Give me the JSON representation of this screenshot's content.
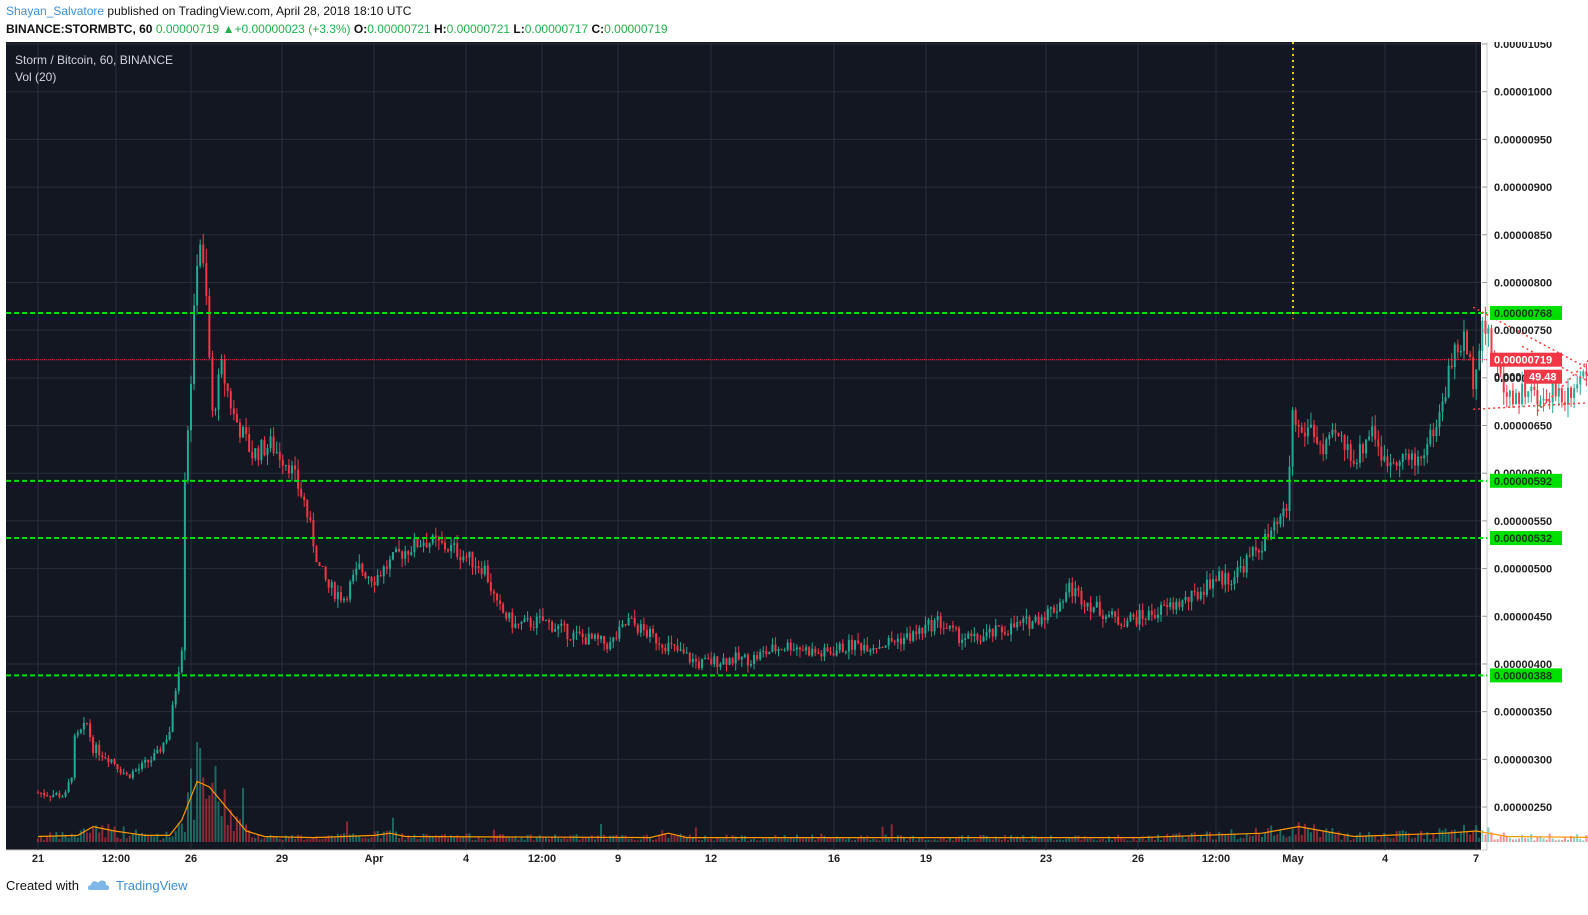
{
  "header": {
    "author": "Shayan_Salvatore",
    "published": "published on TradingView.com, April 28, 2018 18:10 UTC",
    "symbol": "BINANCE:STORMBTC, 60",
    "last": "0.00000719",
    "change": "+0.00000023 (+3.3%)",
    "o_label": "O:",
    "o_value": "0.00000721",
    "h_label": "H:",
    "h_value": "0.00000721",
    "l_label": "L:",
    "l_value": "0.00000717",
    "c_label": "C:",
    "c_value": "0.00000719"
  },
  "legend": {
    "title": "Storm / Bitcoin, 60, BINANCE",
    "indicator": "Vol (20)"
  },
  "footer": {
    "created": "Created with",
    "brand": "TradingView"
  },
  "colors": {
    "background": "#131722",
    "grid": "#2a2e39",
    "up": "#22ab94",
    "down": "#f23645",
    "support": "#00e000",
    "price_line": "#f23645",
    "target": "#e6d200",
    "volume_ma": "#ff9800",
    "axis_bg": "#ffffff"
  },
  "chart_data": {
    "type": "candlestick",
    "ylim": [
      2.1e-06,
      1.06e-05
    ],
    "y_ticks": [
      "0.00001050",
      "0.00001000",
      "0.00000950",
      "0.00000900",
      "0.00000850",
      "0.00000800",
      "0.00000750",
      "0.00000700",
      "0.00000650",
      "0.00000600",
      "0.00000550",
      "0.00000500",
      "0.00000450",
      "0.00000400",
      "0.00000350",
      "0.00000300",
      "0.00000250"
    ],
    "x_ticks": [
      "21",
      "12:00",
      "26",
      "29",
      "Apr",
      "4",
      "12:00",
      "9",
      "12",
      "16",
      "19",
      "23",
      "26",
      "12:00",
      "May",
      "4",
      "7"
    ],
    "support_levels": [
      {
        "value": 7.68e-06,
        "label": "0.00000768"
      },
      {
        "value": 5.92e-06,
        "label": "0.00000592"
      },
      {
        "value": 5.32e-06,
        "label": "0.00000532"
      },
      {
        "value": 3.88e-06,
        "label": "0.00000388"
      }
    ],
    "current_price": {
      "value": 7.19e-06,
      "label": "0.00000719"
    },
    "countdown": {
      "label": "49.48",
      "prefix": "0.000"
    },
    "price_path": [
      [
        0,
        2.65e-06
      ],
      [
        0.9,
        2.62e-06
      ],
      [
        1.1,
        2.85e-06
      ],
      [
        1.2,
        3.2e-06
      ],
      [
        1.6,
        3.37e-06
      ],
      [
        1.8,
        3.12e-06
      ],
      [
        2.4,
        3e-06
      ],
      [
        2.9,
        2.83e-06
      ],
      [
        3.3,
        2.9e-06
      ],
      [
        3.9,
        3.05e-06
      ],
      [
        4.3,
        3.3e-06
      ],
      [
        4.7,
        4.2e-06
      ],
      [
        4.8,
        6e-06
      ],
      [
        5.0,
        7e-06
      ],
      [
        5.25,
        8.6e-06
      ],
      [
        5.5,
        7.8e-06
      ],
      [
        5.7,
        6.6e-06
      ],
      [
        6.0,
        7.1e-06
      ],
      [
        6.4,
        6.6e-06
      ],
      [
        7.0,
        6.2e-06
      ],
      [
        7.6,
        6.3e-06
      ],
      [
        8.2,
        6.1e-06
      ],
      [
        8.7,
        5.7e-06
      ],
      [
        9.2,
        5e-06
      ],
      [
        9.5,
        4.8e-06
      ],
      [
        10.0,
        4.7e-06
      ],
      [
        10.5,
        5e-06
      ],
      [
        11.0,
        4.9e-06
      ],
      [
        11.8,
        5.15e-06
      ],
      [
        12.6,
        5.3e-06
      ],
      [
        13.6,
        5.2e-06
      ],
      [
        14.6,
        5e-06
      ],
      [
        15.0,
        4.6e-06
      ],
      [
        15.6,
        4.4e-06
      ],
      [
        16.5,
        4.45e-06
      ],
      [
        17.5,
        4.3e-06
      ],
      [
        18.7,
        4.2e-06
      ],
      [
        19.3,
        4.45e-06
      ],
      [
        20.0,
        4.3e-06
      ],
      [
        20.8,
        4.15e-06
      ],
      [
        21.6,
        4e-06
      ],
      [
        22.5,
        4.05e-06
      ],
      [
        23.3,
        4.05e-06
      ],
      [
        24.0,
        4.15e-06
      ],
      [
        24.6,
        4.2e-06
      ],
      [
        25.6,
        4.1e-06
      ],
      [
        26.6,
        4.2e-06
      ],
      [
        27.5,
        4.2e-06
      ],
      [
        28.6,
        4.3e-06
      ],
      [
        29.4,
        4.45e-06
      ],
      [
        30.0,
        4.3e-06
      ],
      [
        30.6,
        4.25e-06
      ],
      [
        31.5,
        4.35e-06
      ],
      [
        32.5,
        4.45e-06
      ],
      [
        33.3,
        4.6e-06
      ],
      [
        33.7,
        4.8e-06
      ],
      [
        34.5,
        4.6e-06
      ],
      [
        35.3,
        4.45e-06
      ],
      [
        36.2,
        4.5e-06
      ],
      [
        37.0,
        4.6e-06
      ],
      [
        37.8,
        4.7e-06
      ],
      [
        38.4,
        4.9e-06
      ],
      [
        39.0,
        4.9e-06
      ],
      [
        39.7,
        5.15e-06
      ],
      [
        40.4,
        5.4e-06
      ],
      [
        40.8,
        5.6e-06
      ],
      [
        41.0,
        6.6e-06
      ],
      [
        41.3,
        6.4e-06
      ],
      [
        41.6,
        6.5e-06
      ],
      [
        42.0,
        6.2e-06
      ],
      [
        42.4,
        6.4e-06
      ],
      [
        43.1,
        6.15e-06
      ],
      [
        43.6,
        6.5e-06
      ],
      [
        44.0,
        6.1e-06
      ],
      [
        44.5,
        6.2e-06
      ],
      [
        45.0,
        6.1e-06
      ],
      [
        45.4,
        6.3e-06
      ],
      [
        45.8,
        6.6e-06
      ],
      [
        46.2,
        7.2e-06
      ],
      [
        46.6,
        7.4e-06
      ],
      [
        46.9,
        7e-06
      ],
      [
        47.2,
        7.6e-06
      ],
      [
        47.5,
        7.3e-06
      ],
      [
        47.9,
        6.9e-06
      ],
      [
        48.3,
        6.8e-06
      ],
      [
        48.7,
        6.9e-06
      ],
      [
        49.1,
        6.7e-06
      ],
      [
        49.5,
        6.9e-06
      ],
      [
        49.9,
        6.8e-06
      ],
      [
        50.3,
        7e-06
      ],
      [
        50.7,
        7.1e-06
      ],
      [
        51.0,
        7.2e-06
      ],
      [
        51.3,
        7.19e-06
      ]
    ],
    "volume_ma_path": [
      [
        0,
        0.05
      ],
      [
        1.3,
        0.06
      ],
      [
        1.8,
        0.14
      ],
      [
        2.5,
        0.1
      ],
      [
        3.5,
        0.06
      ],
      [
        4.3,
        0.06
      ],
      [
        4.7,
        0.2
      ],
      [
        5.2,
        0.55
      ],
      [
        5.6,
        0.5
      ],
      [
        6.2,
        0.3
      ],
      [
        6.8,
        0.1
      ],
      [
        7.4,
        0.05
      ],
      [
        9.0,
        0.04
      ],
      [
        11.0,
        0.06
      ],
      [
        11.5,
        0.08
      ],
      [
        12.0,
        0.05
      ],
      [
        20.0,
        0.04
      ],
      [
        20.6,
        0.08
      ],
      [
        21.2,
        0.04
      ],
      [
        36.0,
        0.04
      ],
      [
        40.0,
        0.08
      ],
      [
        41.2,
        0.14
      ],
      [
        42.0,
        0.1
      ],
      [
        43.0,
        0.05
      ],
      [
        44.0,
        0.06
      ],
      [
        46.0,
        0.08
      ],
      [
        47.0,
        0.1
      ],
      [
        48.0,
        0.05
      ],
      [
        51.3,
        0.04
      ]
    ]
  }
}
